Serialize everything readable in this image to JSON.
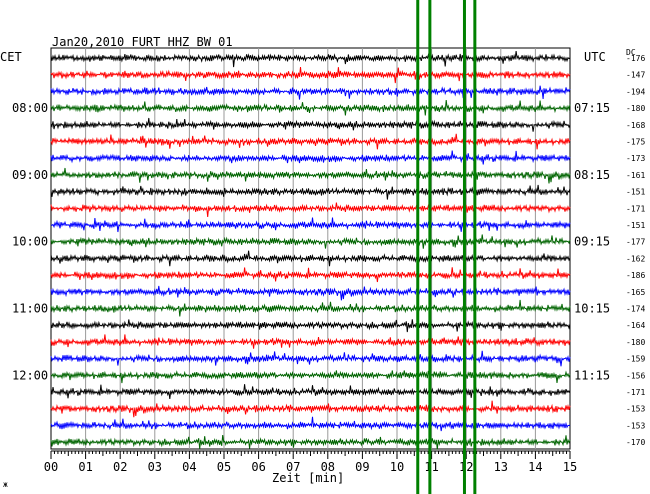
{
  "header": {
    "station": "Jan20,2010  FURT HHZ BW 01",
    "left_tz": "CET",
    "right_tz": "UTC",
    "dc_label": "DC"
  },
  "footer": {
    "xlabel": "Zeit [min]",
    "corner_mark": "ж"
  },
  "chart_data": {
    "type": "line",
    "title": "Jan20,2010  FURT HHZ BW 01",
    "xlabel": "Zeit [min]",
    "xlim": [
      0,
      15
    ],
    "x_ticks": [
      "00",
      "01",
      "02",
      "03",
      "04",
      "05",
      "06",
      "07",
      "08",
      "09",
      "10",
      "11",
      "12",
      "13",
      "14",
      "15"
    ],
    "trace_count": 24,
    "trace_colors": [
      "#000000",
      "#ff0000",
      "#0000ff",
      "#006400"
    ],
    "left_time_labels": [
      "08:00",
      "09:00",
      "10:00",
      "11:00",
      "12:00"
    ],
    "right_time_labels": [
      "07:15",
      "08:15",
      "09:15",
      "10:15",
      "11:15"
    ],
    "time_label_traces": [
      3,
      7,
      11,
      15,
      19
    ],
    "dc_offsets": [
      -176,
      -147,
      -194,
      -180,
      -168,
      -175,
      -173,
      -161,
      -151,
      -171,
      -151,
      -177,
      -162,
      -186,
      -165,
      -174,
      -164,
      -180,
      -159,
      -156,
      -171,
      -153,
      -153,
      -170
    ],
    "event_lines_min": [
      10.6,
      10.95,
      11.95,
      12.25
    ],
    "event_line_color": "#008000"
  }
}
